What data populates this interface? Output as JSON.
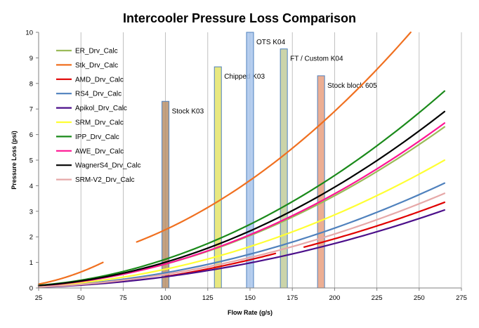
{
  "chart_data": {
    "type": "line",
    "title": "Intercooler Pressure Loss Comparison",
    "xlabel": "Flow Rate (g/s)",
    "ylabel": "Pressure Loss (psi)",
    "xlim": [
      25,
      275
    ],
    "ylim": [
      0,
      10
    ],
    "xticks": [
      25,
      50,
      75,
      100,
      125,
      150,
      175,
      200,
      225,
      250,
      275
    ],
    "yticks": [
      0,
      1,
      2,
      3,
      4,
      5,
      6,
      7,
      8,
      9,
      10
    ],
    "grid": "vertical",
    "legend_position": "top-left",
    "series": [
      {
        "name": "ER_Drv_Calc",
        "color": "#9bbb59",
        "x": [
          25,
          265
        ],
        "y": [
          0.1,
          6.3
        ]
      },
      {
        "name": "Stk_Drv_Calc",
        "color": "#f07020",
        "segments": [
          {
            "x": [
              25,
              63
            ],
            "y": [
              0.15,
              1.0
            ]
          },
          {
            "x": [
              83,
              245
            ],
            "y": [
              1.8,
              10.0
            ]
          }
        ]
      },
      {
        "name": "AMD_Drv_Calc",
        "color": "#e00000",
        "segments": [
          {
            "x": [
              100,
              165
            ],
            "y": [
              0.45,
              1.35
            ]
          },
          {
            "x": [
              182,
              265
            ],
            "y": [
              1.6,
              3.35
            ]
          }
        ]
      },
      {
        "name": "RS4_Drv_Calc",
        "color": "#4f81bd",
        "x": [
          25,
          265
        ],
        "y": [
          0.05,
          4.1
        ]
      },
      {
        "name": "Apikol_Drv_Calc",
        "color": "#4b0f8a",
        "x": [
          25,
          265
        ],
        "y": [
          0.03,
          3.05
        ]
      },
      {
        "name": "SRM_Drv_Calc",
        "color": "#ffff33",
        "x": [
          25,
          265
        ],
        "y": [
          0.07,
          5.0
        ]
      },
      {
        "name": "IPP_Drv_Calc",
        "color": "#1a8a1a",
        "x": [
          25,
          265
        ],
        "y": [
          0.1,
          7.7
        ]
      },
      {
        "name": "AWE_Drv_Calc",
        "color": "#ff1493",
        "x": [
          25,
          265
        ],
        "y": [
          0.08,
          6.45
        ]
      },
      {
        "name": "WagnerS4_Drv_Calc",
        "color": "#000000",
        "x": [
          25,
          265
        ],
        "y": [
          0.09,
          6.9
        ]
      },
      {
        "name": "SRM-V2_Drv_Calc",
        "color": "#e6a8a8",
        "x": [
          25,
          265
        ],
        "y": [
          0.04,
          3.7
        ]
      }
    ],
    "bands": [
      {
        "label": "Stock K03",
        "x": 100,
        "top": 7.3,
        "fill": "#b8916b",
        "stroke": "#4f81bd"
      },
      {
        "label": "Chipped K03",
        "x": 131,
        "top": 8.65,
        "fill": "#e4e46a",
        "stroke": "#4f81bd"
      },
      {
        "label": "OTS K04",
        "x": 150,
        "top": 10.0,
        "fill": "#a9c5ec",
        "stroke": "#4f81bd"
      },
      {
        "label": "FT / Custom K04",
        "x": 170,
        "top": 9.35,
        "fill": "#c2cc9a",
        "stroke": "#4f81bd"
      },
      {
        "label": "Stock block 605",
        "x": 192,
        "top": 8.3,
        "fill": "#e9a080",
        "stroke": "#4f81bd"
      }
    ]
  }
}
